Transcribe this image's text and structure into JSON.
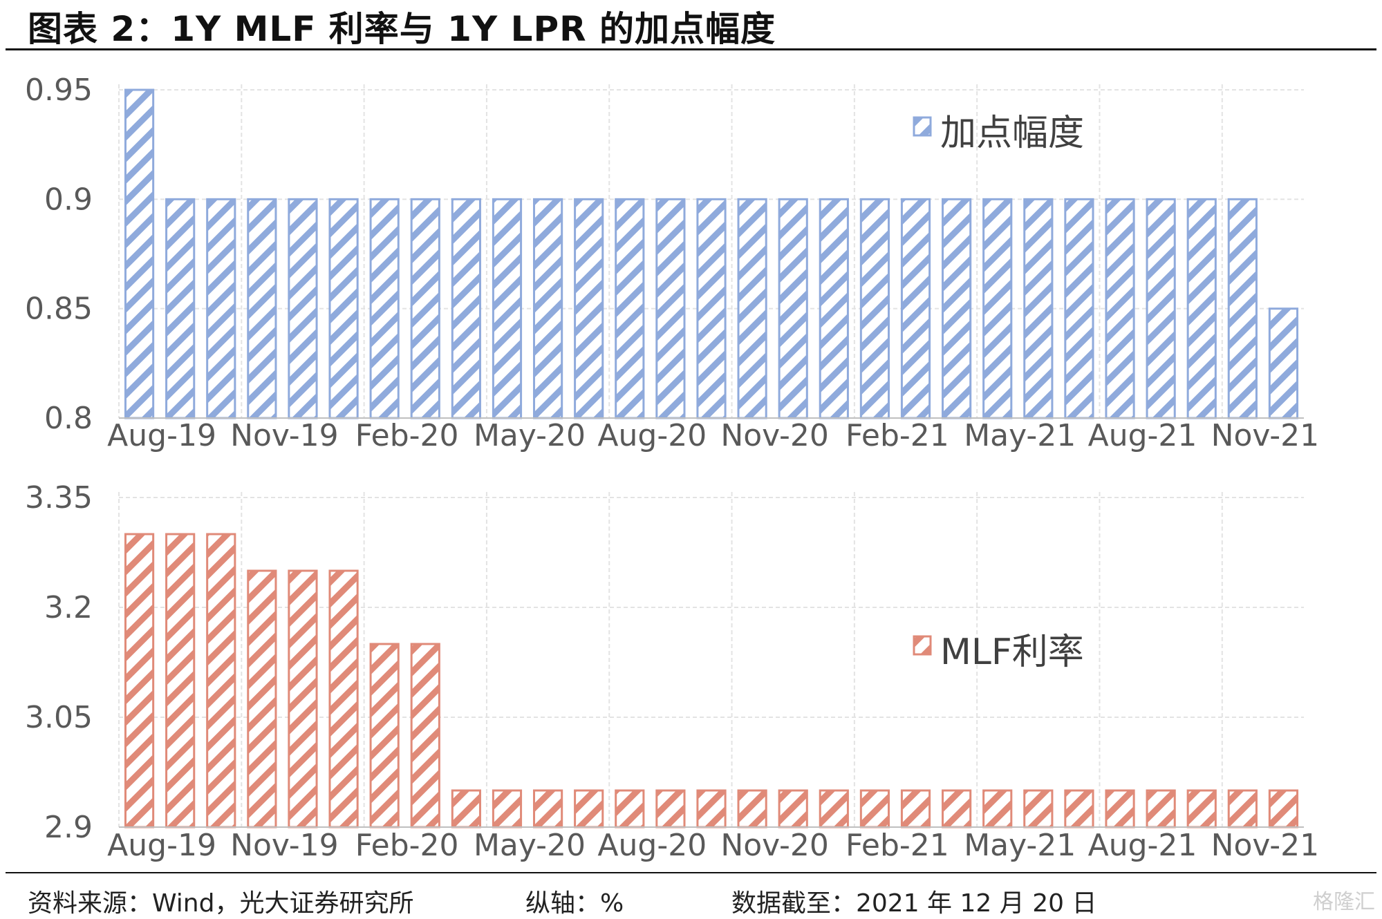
{
  "title": "图表 2：1Y MLF 利率与 1Y LPR 的加点幅度",
  "footer": {
    "source": "资料来源：Wind，光大证券研究所",
    "axis_unit": "纵轴：%",
    "data_date": "数据截至：2021 年 12 月 20 日"
  },
  "watermark": "格隆汇",
  "chart_data": [
    {
      "type": "bar",
      "legend": [
        "加点幅度"
      ],
      "legend_position": "top-right",
      "color": "#8FAADC",
      "categories": [
        "Aug-19",
        "Sep-19",
        "Oct-19",
        "Nov-19",
        "Dec-19",
        "Jan-20",
        "Feb-20",
        "Mar-20",
        "Apr-20",
        "May-20",
        "Jun-20",
        "Jul-20",
        "Aug-20",
        "Sep-20",
        "Oct-20",
        "Nov-20",
        "Dec-20",
        "Jan-21",
        "Feb-21",
        "Mar-21",
        "Apr-21",
        "May-21",
        "Jun-21",
        "Jul-21",
        "Aug-21",
        "Sep-21",
        "Oct-21",
        "Nov-21",
        "Dec-21"
      ],
      "x_tick_labels": [
        "Aug-19",
        "Nov-19",
        "Feb-20",
        "May-20",
        "Aug-20",
        "Nov-20",
        "Feb-21",
        "May-21",
        "Aug-21",
        "Nov-21"
      ],
      "series": [
        {
          "name": "加点幅度",
          "values": [
            0.95,
            0.9,
            0.9,
            0.9,
            0.9,
            0.9,
            0.9,
            0.9,
            0.9,
            0.9,
            0.9,
            0.9,
            0.9,
            0.9,
            0.9,
            0.9,
            0.9,
            0.9,
            0.9,
            0.9,
            0.9,
            0.9,
            0.9,
            0.9,
            0.9,
            0.9,
            0.9,
            0.9,
            0.85
          ]
        }
      ],
      "ylim": [
        0.8,
        0.95
      ],
      "y_ticks": [
        "0.8",
        "0.85",
        "0.9",
        "0.95"
      ],
      "grid": true
    },
    {
      "type": "bar",
      "legend": [
        "MLF利率"
      ],
      "legend_position": "right",
      "color": "#E08A78",
      "categories": [
        "Aug-19",
        "Sep-19",
        "Oct-19",
        "Nov-19",
        "Dec-19",
        "Jan-20",
        "Feb-20",
        "Mar-20",
        "Apr-20",
        "May-20",
        "Jun-20",
        "Jul-20",
        "Aug-20",
        "Sep-20",
        "Oct-20",
        "Nov-20",
        "Dec-20",
        "Jan-21",
        "Feb-21",
        "Mar-21",
        "Apr-21",
        "May-21",
        "Jun-21",
        "Jul-21",
        "Aug-21",
        "Sep-21",
        "Oct-21",
        "Nov-21",
        "Dec-21"
      ],
      "x_tick_labels": [
        "Aug-19",
        "Nov-19",
        "Feb-20",
        "May-20",
        "Aug-20",
        "Nov-20",
        "Feb-21",
        "May-21",
        "Aug-21",
        "Nov-21"
      ],
      "series": [
        {
          "name": "MLF利率",
          "values": [
            3.3,
            3.3,
            3.3,
            3.25,
            3.25,
            3.25,
            3.15,
            3.15,
            2.95,
            2.95,
            2.95,
            2.95,
            2.95,
            2.95,
            2.95,
            2.95,
            2.95,
            2.95,
            2.95,
            2.95,
            2.95,
            2.95,
            2.95,
            2.95,
            2.95,
            2.95,
            2.95,
            2.95,
            2.95
          ]
        }
      ],
      "ylim": [
        2.9,
        3.35
      ],
      "y_ticks": [
        "2.9",
        "3.05",
        "3.2",
        "3.35"
      ],
      "grid": true
    }
  ]
}
